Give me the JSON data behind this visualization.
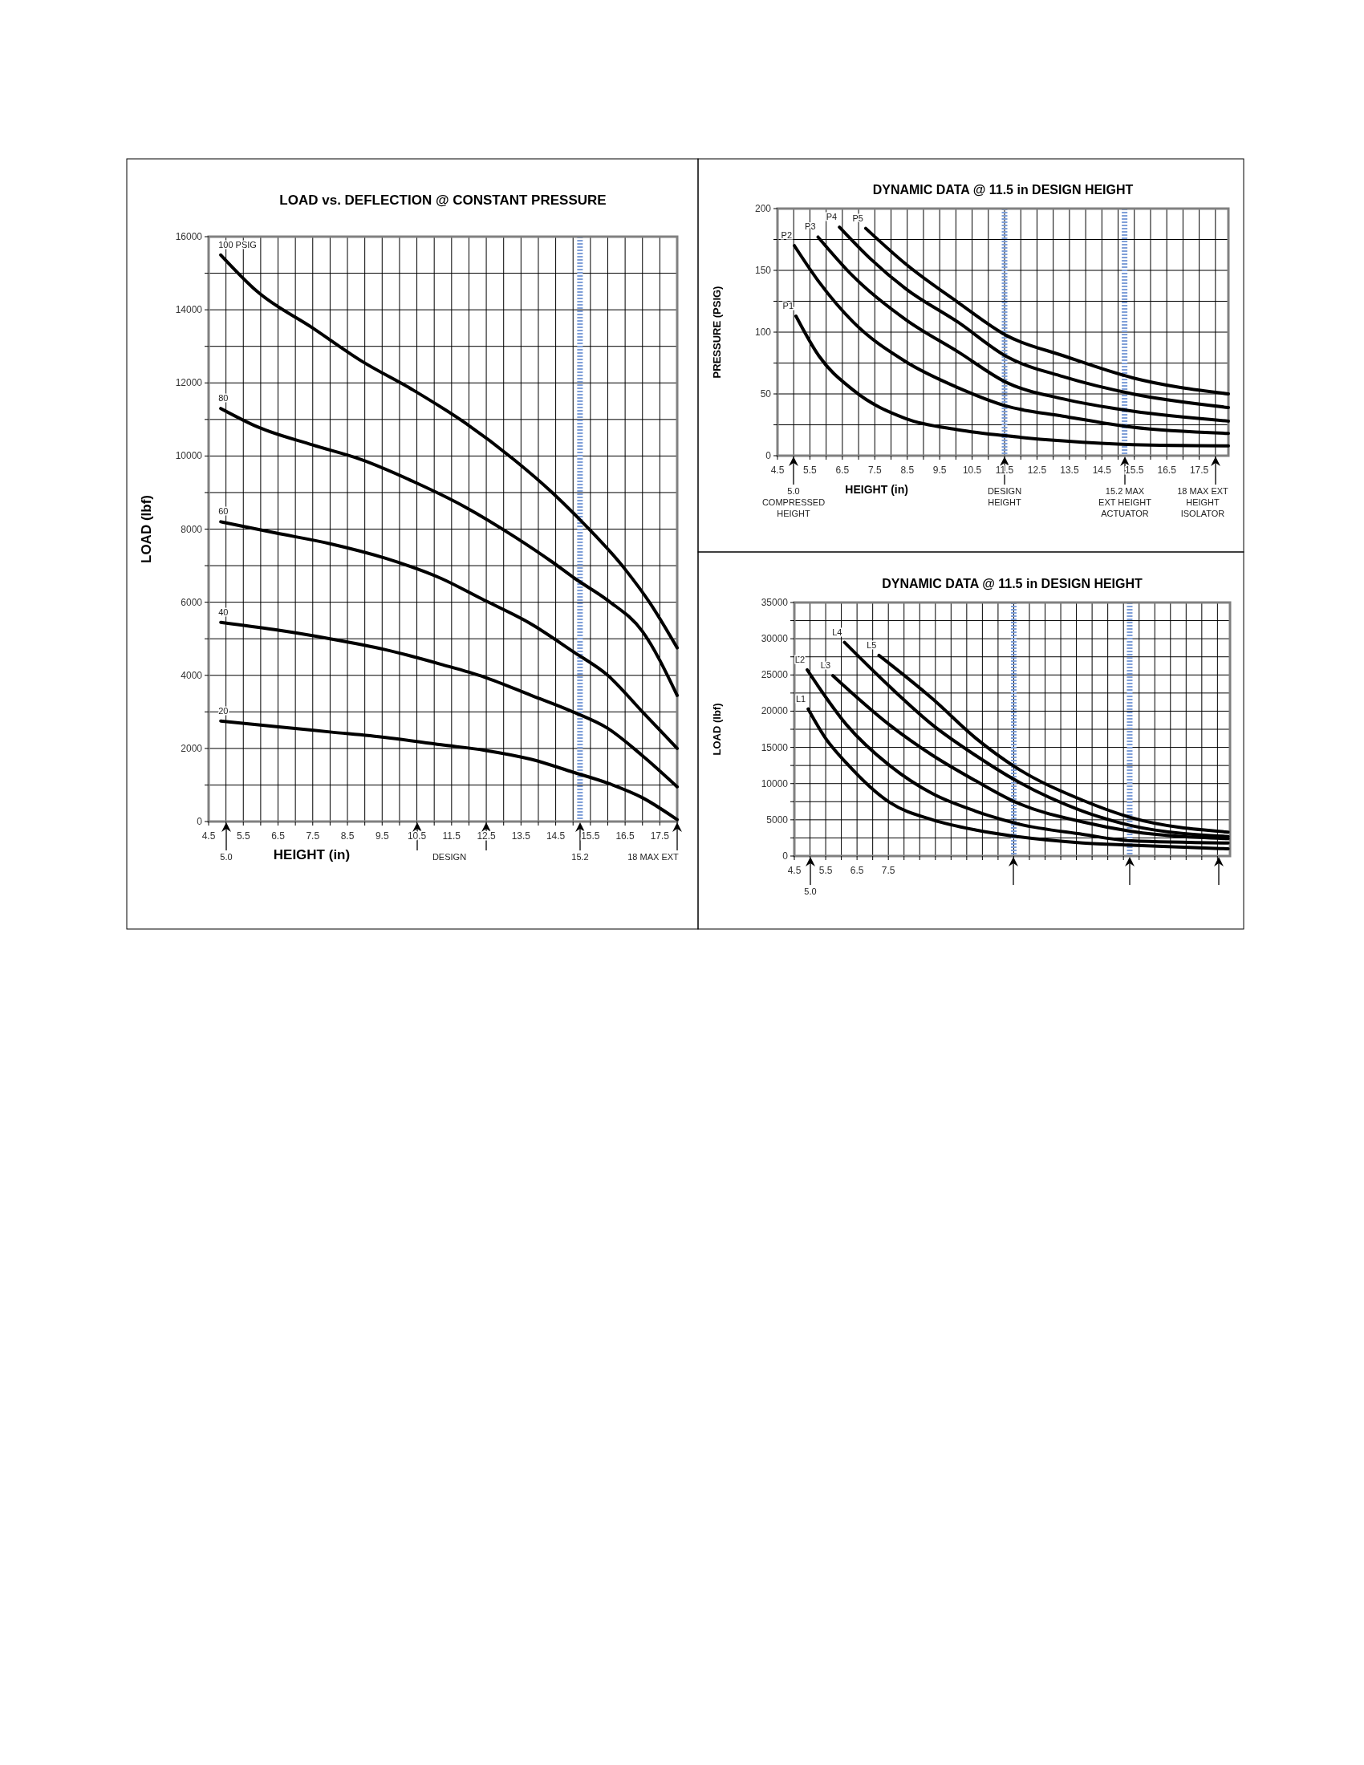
{
  "chart_data": [
    {
      "type": "line",
      "title": "LOAD vs. DEFLECTION @ CONSTANT PRESSURE",
      "xlabel": "HEIGHT (in)",
      "ylabel": "LOAD (lbf)",
      "xlim": [
        4.5,
        18
      ],
      "ylim": [
        0,
        16000
      ],
      "xticks": [
        4.5,
        {
          "value": 5,
          "label": null
        },
        5.5,
        {
          "value": 6,
          "label": null
        },
        6.5,
        {
          "value": 7,
          "label": null
        },
        7.5,
        {
          "value": 8,
          "label": null
        },
        8.5,
        {
          "value": 9,
          "label": null
        },
        9.5,
        {
          "value": 10,
          "label": null
        },
        10.5,
        {
          "value": 11,
          "label": null
        },
        11.5,
        {
          "value": 12,
          "label": null
        },
        12.5,
        {
          "value": 13,
          "label": null
        },
        13.5,
        {
          "value": 14,
          "label": null
        },
        14.5,
        {
          "value": 15,
          "label": null
        },
        15.5,
        {
          "value": 16,
          "label": null
        },
        16.5,
        {
          "value": 17,
          "label": null
        },
        17.5,
        {
          "value": 18,
          "label": null
        }
      ],
      "yticks": [
        0,
        {
          "value": 1000,
          "label": null
        },
        2000,
        {
          "value": 3000,
          "label": null
        },
        4000,
        {
          "value": 5000,
          "label": null
        },
        6000,
        {
          "value": 7000,
          "label": null
        },
        8000,
        {
          "value": 9000,
          "label": null
        },
        10000,
        {
          "value": 11000,
          "label": null
        },
        12000,
        {
          "value": 13000,
          "label": null
        },
        14000,
        {
          "value": 15000,
          "label": null
        },
        16000
      ],
      "grid": true,
      "legend": false,
      "marker": "none",
      "line_style": "solid",
      "series": [
        {
          "name": "100 PSIG",
          "color": "#000000",
          "x": [
            4.85,
            5.9,
            7.5,
            8.9,
            10.4,
            11.9,
            13.3,
            14.4,
            15.05,
            16.5,
            17.2,
            18
          ],
          "values": [
            15500,
            14500,
            13500,
            12600,
            11800,
            10900,
            9900,
            9000,
            8400,
            6900,
            6000,
            4750
          ]
        },
        {
          "name": "80",
          "color": "#000000",
          "x": [
            4.85,
            5.9,
            7.5,
            8.9,
            10.4,
            11.9,
            13.3,
            14.4,
            15.05,
            16,
            17,
            18
          ],
          "values": [
            11300,
            10800,
            10300,
            9900,
            9300,
            8600,
            7800,
            7100,
            6650,
            6050,
            5200,
            3450
          ]
        },
        {
          "name": "60",
          "color": "#000000",
          "x": [
            4.85,
            6.4,
            8,
            9.6,
            11.2,
            12.35,
            13.8,
            15,
            16,
            17,
            18
          ],
          "values": [
            8200,
            7900,
            7600,
            7200,
            6650,
            6100,
            5400,
            4650,
            4000,
            3000,
            2000
          ]
        },
        {
          "name": "40",
          "color": "#000000",
          "x": [
            4.85,
            6.4,
            8,
            9.6,
            11.2,
            12.45,
            13.8,
            15,
            16,
            17,
            18
          ],
          "values": [
            5450,
            5250,
            5000,
            4700,
            4300,
            3950,
            3450,
            3000,
            2550,
            1800,
            950
          ]
        },
        {
          "name": "20",
          "color": "#000000",
          "x": [
            4.85,
            6.4,
            8,
            9.6,
            11.2,
            12.45,
            13.8,
            15,
            16,
            17,
            18
          ],
          "values": [
            2750,
            2600,
            2450,
            2300,
            2100,
            1950,
            1700,
            1350,
            1050,
            650,
            50
          ]
        }
      ],
      "ref_lines": [
        {
          "axis": "x",
          "value": 15.2,
          "color": "#7f9fd8",
          "line_style": "dotted"
        }
      ],
      "annotations": [
        "5.0",
        "DESIGN",
        "15.2",
        "18  MAX EXT"
      ]
    },
    {
      "type": "line",
      "title": "DYNAMIC DATA @ 11.5 in DESIGN HEIGHT",
      "xlabel": "HEIGHT (in)",
      "ylabel": "PRESSURE (PSIG)",
      "xlim": [
        4.5,
        18.4
      ],
      "ylim": [
        0,
        200
      ],
      "xticks": [
        4.5,
        {
          "value": 5,
          "label": null
        },
        5.5,
        {
          "value": 6,
          "label": null
        },
        6.5,
        {
          "value": 7,
          "label": null
        },
        7.5,
        {
          "value": 8,
          "label": null
        },
        8.5,
        {
          "value": 9,
          "label": null
        },
        9.5,
        {
          "value": 10,
          "label": null
        },
        10.5,
        {
          "value": 11,
          "label": null
        },
        11.5,
        {
          "value": 12,
          "label": null
        },
        12.5,
        {
          "value": 13,
          "label": null
        },
        13.5,
        {
          "value": 14,
          "label": null
        },
        14.5,
        {
          "value": 15,
          "label": null
        },
        15.5,
        {
          "value": 16,
          "label": null
        },
        16.5,
        {
          "value": 17,
          "label": null
        },
        17.5,
        {
          "value": 18,
          "label": null
        }
      ],
      "yticks": [
        0,
        {
          "value": 25,
          "label": null
        },
        50,
        {
          "value": 75,
          "label": null
        },
        100,
        {
          "value": 125,
          "label": null
        },
        150,
        {
          "value": 175,
          "label": null
        },
        200
      ],
      "grid": true,
      "legend": false,
      "marker": "none",
      "line_style": "solid",
      "series": [
        {
          "name": "P1",
          "color": "#000000",
          "x": [
            5.07,
            5.77,
            6.84,
            8.46,
            10.07,
            11.58,
            13.3,
            15.45,
            18.4
          ],
          "values": [
            113,
            81,
            53,
            30,
            21,
            16,
            12,
            9,
            8
          ]
        },
        {
          "name": "P2",
          "color": "#000000",
          "x": [
            5.02,
            5.77,
            6.84,
            8.46,
            10.07,
            11.58,
            13.3,
            15.45,
            18.4
          ],
          "values": [
            170,
            141,
            108,
            76,
            55,
            40,
            32,
            23,
            18
          ]
        },
        {
          "name": "P3",
          "color": "#000000",
          "x": [
            5.75,
            6.84,
            8.46,
            10.07,
            11.58,
            13.3,
            15.45,
            18.4
          ],
          "values": [
            177,
            145,
            110,
            84,
            59,
            46,
            36,
            28
          ]
        },
        {
          "name": "P4",
          "color": "#000000",
          "x": [
            6.41,
            7.38,
            8.46,
            10.07,
            11.58,
            13.3,
            15.45,
            18.4
          ],
          "values": [
            185,
            159,
            135,
            108,
            80,
            64,
            50,
            39
          ]
        },
        {
          "name": "P5",
          "color": "#000000",
          "x": [
            7.22,
            8.46,
            10.07,
            11.58,
            13.3,
            15.45,
            18.4
          ],
          "values": [
            184,
            155,
            124,
            97,
            81,
            63,
            50
          ]
        }
      ],
      "ref_lines": [
        {
          "axis": "x",
          "value": 11.5,
          "color": "#7f9fd8",
          "line_style": "dotted"
        },
        {
          "axis": "x",
          "value": 15.2,
          "color": "#7f9fd8",
          "line_style": "dotted"
        }
      ],
      "annotations": [
        "5.0",
        "COMPRESSED HEIGHT",
        "DESIGN HEIGHT",
        "15.2 MAX EXT HEIGHT ACTUATOR",
        "18 MAX EXT HEIGHT ISOLATOR"
      ]
    },
    {
      "type": "line",
      "title": "DYNAMIC DATA @ 11.5 in DESIGN HEIGHT",
      "ylabel": "LOAD (lbf)",
      "xlim": [
        4.5,
        18.4
      ],
      "ylim": [
        0,
        35000
      ],
      "xticks": [
        4.5,
        {
          "value": 5,
          "label": null
        },
        5.5,
        {
          "value": 6,
          "label": null
        },
        6.5,
        {
          "value": 7,
          "label": null
        },
        7.5,
        {
          "value": 8,
          "label": null
        },
        {
          "value": 8.5,
          "label": null
        },
        {
          "value": 9,
          "label": null
        },
        {
          "value": 9.5,
          "label": null
        },
        {
          "value": 10,
          "label": null
        },
        {
          "value": 10.5,
          "label": null
        },
        {
          "value": 11,
          "label": null
        },
        {
          "value": 11.5,
          "label": null
        },
        {
          "value": 12,
          "label": null
        },
        {
          "value": 12.5,
          "label": null
        },
        {
          "value": 13,
          "label": null
        },
        {
          "value": 13.5,
          "label": null
        },
        {
          "value": 14,
          "label": null
        },
        {
          "value": 14.5,
          "label": null
        },
        {
          "value": 15,
          "label": null
        },
        {
          "value": 15.5,
          "label": null
        },
        {
          "value": 16,
          "label": null
        },
        {
          "value": 16.5,
          "label": null
        },
        {
          "value": 17,
          "label": null
        },
        {
          "value": 17.5,
          "label": null
        },
        {
          "value": 18,
          "label": null
        }
      ],
      "yticks": [
        0,
        {
          "value": 2500,
          "label": null
        },
        5000,
        {
          "value": 7500,
          "label": null
        },
        10000,
        {
          "value": 12500,
          "label": null
        },
        15000,
        {
          "value": 17500,
          "label": null
        },
        20000,
        {
          "value": 22500,
          "label": null
        },
        25000,
        {
          "value": 27500,
          "label": null
        },
        30000,
        {
          "value": 32500,
          "label": null
        },
        35000
      ],
      "grid": true,
      "legend": false,
      "marker": "none",
      "line_style": "solid",
      "series": [
        {
          "name": "L1",
          "color": "#000000",
          "x": [
            4.94,
            5.49,
            6.17,
            7.54,
            8.91,
            10.28,
            11.58,
            13.7,
            15.25,
            18.34
          ],
          "values": [
            20300,
            16300,
            12800,
            7400,
            5000,
            3600,
            2700,
            1800,
            1500,
            1000
          ]
        },
        {
          "name": "L2",
          "color": "#000000",
          "x": [
            4.91,
            6.17,
            7.54,
            8.91,
            10.28,
            11.58,
            13.7,
            15.25,
            18.34
          ],
          "values": [
            25700,
            18100,
            12500,
            8600,
            6200,
            4500,
            3000,
            2100,
            1800
          ]
        },
        {
          "name": "L3",
          "color": "#000000",
          "x": [
            5.73,
            7.54,
            8.91,
            10.28,
            11.58,
            13.7,
            15.25,
            18.34
          ],
          "values": [
            24900,
            18100,
            13900,
            10400,
            7400,
            4700,
            3400,
            2400
          ]
        },
        {
          "name": "L4",
          "color": "#000000",
          "x": [
            6.1,
            7.54,
            8.91,
            10.28,
            11.58,
            13.7,
            15.25,
            18.34
          ],
          "values": [
            29500,
            23400,
            18100,
            13900,
            10400,
            6200,
            4200,
            2700
          ]
        },
        {
          "name": "L5",
          "color": "#000000",
          "x": [
            7.2,
            8.91,
            10.28,
            11.58,
            13.7,
            15.25,
            18.34
          ],
          "values": [
            27700,
            21700,
            16300,
            12200,
            7700,
            5300,
            3300
          ]
        }
      ],
      "ref_lines": [
        {
          "axis": "x",
          "value": 11.5,
          "color": "#7f9fd8",
          "line_style": "dotted"
        },
        {
          "axis": "x",
          "value": 15.2,
          "color": "#7f9fd8",
          "line_style": "dotted"
        }
      ],
      "annotations": [
        "5.0"
      ]
    }
  ]
}
